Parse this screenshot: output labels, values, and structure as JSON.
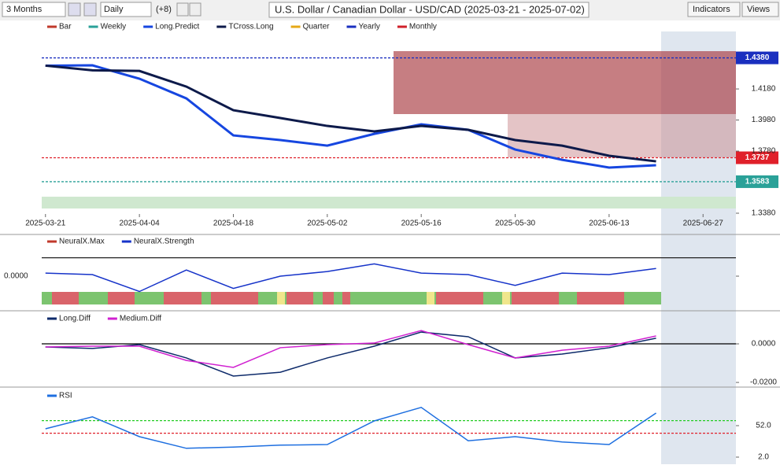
{
  "toolbar": {
    "range": "3 Months",
    "interval": "Daily",
    "offset": "(+8)",
    "title": "U.S. Dollar / Canadian Dollar - USD/CAD (2025-03-21 - 2025-07-02)",
    "indicators": "Indicators",
    "views": "Views"
  },
  "chart_data": [
    {
      "type": "line",
      "x": [
        0,
        5,
        10,
        15,
        20,
        25,
        30,
        35,
        40,
        45,
        50,
        55,
        60,
        65
      ],
      "xlim": [
        -0.4,
        73.5
      ],
      "ylim": [
        1.3375,
        1.455
      ],
      "xticks": [
        {
          "value": 0,
          "label": "2025-03-21"
        },
        {
          "value": 10,
          "label": "2025-04-04"
        },
        {
          "value": 20,
          "label": "2025-04-18"
        },
        {
          "value": 30,
          "label": "2025-05-02"
        },
        {
          "value": 40,
          "label": "2025-05-16"
        },
        {
          "value": 50,
          "label": "2025-05-30"
        },
        {
          "value": 60,
          "label": "2025-06-13"
        },
        {
          "value": 70,
          "label": "2025-06-27"
        }
      ],
      "yticks": [
        {
          "value": 1.418,
          "label": "1.4180"
        },
        {
          "value": 1.398,
          "label": "1.3980"
        },
        {
          "value": 1.378,
          "label": "1.3780"
        },
        {
          "value": 1.338,
          "label": "1.3380"
        }
      ],
      "legend": [
        {
          "name": "Bar",
          "color": "#c0392b"
        },
        {
          "name": "Weekly",
          "color": "#2aa198"
        },
        {
          "name": "Quarter",
          "color": "#e6a817"
        },
        {
          "name": "Yearly",
          "color": "#1a2fbf"
        },
        {
          "name": "Monthly",
          "color": "#d0202a"
        }
      ],
      "series": [
        {
          "name": "Long.Predict",
          "color": "#1646e0",
          "values": [
            1.433,
            1.4332,
            1.4246,
            1.4119,
            1.3881,
            1.3851,
            1.3815,
            1.3891,
            1.3952,
            1.3917,
            1.379,
            1.3724,
            1.3674,
            1.3689
          ]
        },
        {
          "name": "TCross.Long",
          "color": "#0d1a4a",
          "values": [
            1.433,
            1.43,
            1.4296,
            1.4195,
            1.4043,
            1.3993,
            1.3942,
            1.3907,
            1.3942,
            1.3917,
            1.3851,
            1.3815,
            1.375,
            1.3714
          ]
        }
      ],
      "levels": [
        {
          "value": 1.438,
          "label": "1.4380",
          "color": "#1a2fbf"
        },
        {
          "value": 1.3737,
          "label": "1.3737",
          "color": "#e0202a"
        },
        {
          "value": 1.3583,
          "label": "1.3583",
          "color": "#2aa198"
        }
      ]
    },
    {
      "type": "line",
      "x": [
        0,
        5,
        10,
        15,
        20,
        25,
        30,
        35,
        40,
        45,
        50,
        55,
        60,
        65
      ],
      "xlim": [
        -0.4,
        73.5
      ],
      "ylim": [
        -1,
        1
      ],
      "yticks": [
        {
          "value": 0,
          "label": "0.0000"
        }
      ],
      "legend": [
        {
          "name": "NeuralX.Max",
          "color": "#c0392b"
        }
      ],
      "series": [
        {
          "name": "NeuralX.Strength",
          "color": "#1633c9",
          "values": [
            0.1,
            0.05,
            -0.5,
            0.2,
            -0.4,
            0,
            0.15,
            0.4,
            0.1,
            0.05,
            -0.3,
            0.1,
            0.05,
            0.25
          ]
        }
      ],
      "levels": [
        {
          "value": 0.6,
          "color": "#222"
        }
      ]
    },
    {
      "type": "line",
      "x": [
        0,
        5,
        10,
        15,
        20,
        25,
        30,
        35,
        40,
        45,
        50,
        55,
        60,
        65
      ],
      "xlim": [
        -0.4,
        73.5
      ],
      "ylim": [
        -0.0216,
        0.0151
      ],
      "yticks": [
        {
          "value": 0,
          "label": "0.0000"
        },
        {
          "value": -0.02,
          "label": "-0.0200"
        }
      ],
      "series": [
        {
          "name": "Long.Diff",
          "color": "#0d2a6a",
          "values": [
            -0.0016,
            -0.0024,
            -0.0004,
            -0.0073,
            -0.0167,
            -0.0147,
            -0.0073,
            -0.0012,
            0.0061,
            0.0037,
            -0.0073,
            -0.0053,
            -0.002,
            0.0029
          ]
        },
        {
          "name": "Medium.Diff",
          "color": "#d020d0",
          "values": [
            -0.0016,
            -0.0012,
            -0.0012,
            -0.0086,
            -0.0122,
            -0.002,
            -0.0004,
            0.0004,
            0.0069,
            -0.0004,
            -0.0073,
            -0.0033,
            -0.0012,
            0.0041
          ]
        }
      ],
      "levels": [
        {
          "value": 0,
          "color": "#000"
        }
      ]
    },
    {
      "type": "line",
      "x": [
        0,
        5,
        10,
        15,
        20,
        25,
        30,
        35,
        40,
        45,
        50,
        55,
        60,
        65
      ],
      "xlim": [
        -0.4,
        73.5
      ],
      "ylim": [
        -6.75,
        107
      ],
      "yticks": [
        {
          "value": 52,
          "label": "52.0"
        },
        {
          "value": 2,
          "label": "2.0"
        }
      ],
      "series": [
        {
          "name": "RSI",
          "color": "#1e6fe0",
          "values": [
            47,
            66,
            34.5,
            16,
            18,
            21,
            22,
            59.5,
            81,
            28,
            34.5,
            26,
            22,
            72
          ]
        }
      ],
      "levels": [
        {
          "value": 60,
          "color": "#22cc22"
        },
        {
          "value": 40,
          "color": "#e0202a"
        }
      ]
    }
  ]
}
